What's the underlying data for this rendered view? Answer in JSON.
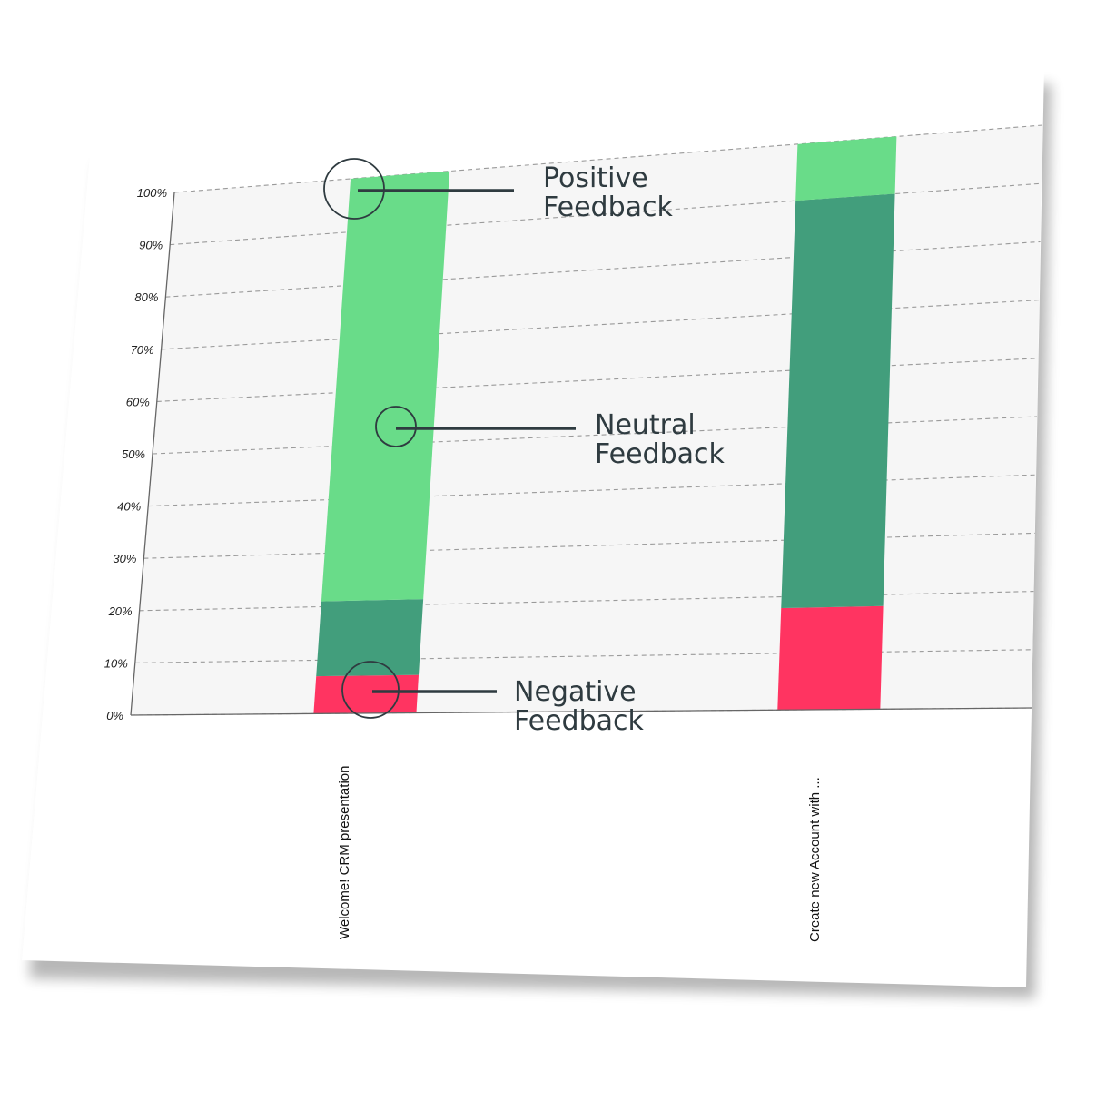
{
  "chart_data": {
    "type": "bar",
    "stacked": true,
    "categories": [
      "Welcome! CRM presentation",
      "Create new Account with ..."
    ],
    "series": [
      {
        "name": "Negative Feedback",
        "color": "#ff3461",
        "values": [
          7,
          18
        ]
      },
      {
        "name": "Neutral Feedback",
        "color": "#429e7c",
        "values": [
          14,
          72
        ]
      },
      {
        "name": "Positive Feedback",
        "color": "#69dc89",
        "values": [
          79,
          10
        ]
      }
    ],
    "ylim": [
      0,
      100
    ],
    "y_ticks": [
      "0%",
      "10%",
      "20%",
      "30%",
      "40%",
      "50%",
      "60%",
      "70%",
      "80%",
      "90%",
      "100%"
    ],
    "grid": true,
    "annotations": [
      {
        "lines": [
          "Positive",
          "Feedback"
        ]
      },
      {
        "lines": [
          "Neutral",
          "Feedback"
        ]
      },
      {
        "lines": [
          "Negative",
          "Feedback"
        ]
      }
    ],
    "colors": {
      "plot_bg": "#f6f6f6",
      "grid": "#9a9a9a",
      "callout": "#2f3b40"
    }
  }
}
